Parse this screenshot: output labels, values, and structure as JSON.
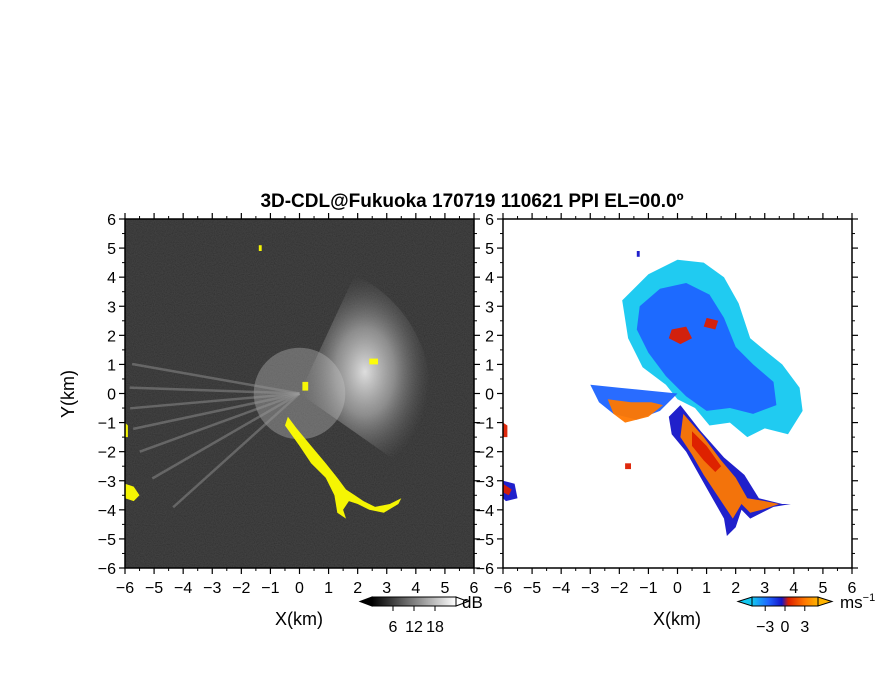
{
  "title": "3D-CDL@Fukuoka 170719 110621 PPI EL=00.0º",
  "colors": {
    "background": "#ffffff",
    "dark_field": "#1e1e1e",
    "yellow": "#ffff00",
    "dark_blue": "#1414c8",
    "blue": "#1e64ff",
    "cyan": "#14c8f0",
    "orange": "#ff7800",
    "red": "#dc1e00"
  },
  "chart_data": [
    {
      "type": "heatmap",
      "panel": "left",
      "title": "",
      "xlabel": "X(km)",
      "ylabel": "Y(km)",
      "xlim": [
        -6,
        6
      ],
      "ylim": [
        -6,
        6
      ],
      "x_ticks": [
        -6,
        -5,
        -4,
        -3,
        -2,
        -1,
        0,
        1,
        2,
        3,
        4,
        5,
        6
      ],
      "y_ticks": [
        -6,
        -5,
        -4,
        -3,
        -2,
        -1,
        0,
        1,
        2,
        3,
        4,
        5,
        6
      ],
      "x_tick_labels": [
        "−6",
        "−5",
        "−4",
        "−3",
        "−2",
        "−1",
        "0",
        "1",
        "2",
        "3",
        "4",
        "5",
        "6"
      ],
      "y_tick_labels": [
        "−6",
        "−5",
        "−4",
        "−3",
        "−2",
        "−1",
        "0",
        "1",
        "2",
        "3",
        "4",
        "5",
        "6"
      ],
      "grid": false,
      "colorbar": {
        "unit": "dB",
        "tick_labels": [
          "6",
          "12",
          "18"
        ],
        "ticks": [
          6,
          12,
          18
        ],
        "range": [
          0,
          24
        ],
        "colormap": "grayscale"
      },
      "features": [
        {
          "name": "bright sector",
          "shape": "wedge",
          "center": [
            0,
            0
          ],
          "radius_km": 4.5,
          "angle_from_deg": -35,
          "angle_to_deg": 65
        },
        {
          "name": "beam streaks",
          "shape": "rays",
          "center": [
            0,
            0
          ],
          "angles_deg": [
            170,
            178,
            185,
            192,
            200,
            210,
            222
          ]
        },
        {
          "name": "yellow band",
          "color": "yellow",
          "points": [
            [
              -0.4,
              -0.8
            ],
            [
              -0.1,
              -1.2
            ],
            [
              0.4,
              -1.8
            ],
            [
              0.9,
              -2.4
            ],
            [
              1.3,
              -2.9
            ],
            [
              1.6,
              -3.3
            ],
            [
              1.9,
              -3.5
            ],
            [
              2.2,
              -3.7
            ],
            [
              2.6,
              -3.9
            ],
            [
              3.1,
              -3.8
            ],
            [
              3.5,
              -3.6
            ],
            [
              3.4,
              -3.8
            ],
            [
              2.9,
              -4.1
            ],
            [
              2.4,
              -4.0
            ],
            [
              2.0,
              -3.8
            ],
            [
              1.7,
              -3.7
            ],
            [
              1.5,
              -4.0
            ],
            [
              1.6,
              -4.3
            ],
            [
              1.3,
              -4.1
            ],
            [
              1.2,
              -3.5
            ],
            [
              0.9,
              -2.9
            ],
            [
              0.4,
              -2.4
            ],
            [
              0.0,
              -1.8
            ],
            [
              -0.5,
              -1.1
            ]
          ]
        },
        {
          "name": "yellow blob west",
          "color": "yellow",
          "points": [
            [
              -6.0,
              -3.1
            ],
            [
              -5.7,
              -3.2
            ],
            [
              -5.5,
              -3.5
            ],
            [
              -5.7,
              -3.7
            ],
            [
              -6.0,
              -3.6
            ]
          ]
        },
        {
          "name": "yellow blob edge",
          "color": "yellow",
          "points": [
            [
              -6.0,
              -1.0
            ],
            [
              -5.9,
              -1.1
            ],
            [
              -5.9,
              -1.5
            ],
            [
              -6.0,
              -1.5
            ]
          ]
        },
        {
          "name": "yellow speck north",
          "color": "yellow",
          "points": [
            [
              -1.4,
              5.1
            ],
            [
              -1.3,
              5.1
            ],
            [
              -1.3,
              4.9
            ],
            [
              -1.4,
              4.9
            ]
          ]
        },
        {
          "name": "yellow speck east",
          "color": "yellow",
          "points": [
            [
              2.4,
              1.2
            ],
            [
              2.7,
              1.2
            ],
            [
              2.7,
              1.0
            ],
            [
              2.4,
              1.0
            ]
          ]
        },
        {
          "name": "yellow speck center",
          "color": "yellow",
          "points": [
            [
              0.1,
              0.4
            ],
            [
              0.3,
              0.4
            ],
            [
              0.3,
              0.1
            ],
            [
              0.1,
              0.1
            ]
          ]
        }
      ]
    },
    {
      "type": "heatmap",
      "panel": "right",
      "title": "",
      "xlabel": "X(km)",
      "ylabel": "",
      "xlim": [
        -6,
        6
      ],
      "ylim": [
        -6,
        6
      ],
      "x_ticks": [
        -6,
        -5,
        -4,
        -3,
        -2,
        -1,
        0,
        1,
        2,
        3,
        4,
        5,
        6
      ],
      "y_ticks": [
        -6,
        -5,
        -4,
        -3,
        -2,
        -1,
        0,
        1,
        2,
        3,
        4,
        5,
        6
      ],
      "x_tick_labels": [
        "−6",
        "−5",
        "−4",
        "−3",
        "−2",
        "−1",
        "0",
        "1",
        "2",
        "3",
        "4",
        "5",
        "6"
      ],
      "y_tick_labels": [
        "−6",
        "−5",
        "−4",
        "−3",
        "−2",
        "−1",
        "0",
        "1",
        "2",
        "3",
        "4",
        "5",
        "6"
      ],
      "grid": false,
      "colorbar": {
        "unit": "ms",
        "unit_superscript": "−1",
        "tick_labels": [
          "−3",
          "0",
          "3"
        ],
        "ticks": [
          -3,
          0,
          3
        ],
        "range": [
          -5,
          5
        ],
        "colormap": "cyan-blue-red-orange"
      },
      "features": [
        {
          "name": "cyan echo",
          "color": "cyan",
          "points": [
            [
              -1.9,
              3.2
            ],
            [
              -1.0,
              4.1
            ],
            [
              0.0,
              4.6
            ],
            [
              0.9,
              4.5
            ],
            [
              1.6,
              4.0
            ],
            [
              2.1,
              3.1
            ],
            [
              2.5,
              1.9
            ],
            [
              3.1,
              1.4
            ],
            [
              3.6,
              1.0
            ],
            [
              4.2,
              0.2
            ],
            [
              4.3,
              -0.6
            ],
            [
              3.8,
              -1.4
            ],
            [
              3.0,
              -1.2
            ],
            [
              2.4,
              -1.5
            ],
            [
              1.8,
              -1.0
            ],
            [
              1.1,
              -1.1
            ],
            [
              0.6,
              -0.5
            ],
            [
              0.0,
              -0.2
            ],
            [
              -0.4,
              0.3
            ],
            [
              -1.2,
              0.9
            ],
            [
              -1.7,
              1.9
            ]
          ]
        },
        {
          "name": "blue core",
          "color": "blue",
          "points": [
            [
              -1.3,
              3.0
            ],
            [
              -0.6,
              3.6
            ],
            [
              0.3,
              3.8
            ],
            [
              1.1,
              3.4
            ],
            [
              1.6,
              2.6
            ],
            [
              2.0,
              1.6
            ],
            [
              2.6,
              1.0
            ],
            [
              3.3,
              0.4
            ],
            [
              3.4,
              -0.4
            ],
            [
              2.6,
              -0.7
            ],
            [
              1.8,
              -0.5
            ],
            [
              1.0,
              -0.6
            ],
            [
              0.3,
              -0.1
            ],
            [
              -0.4,
              0.6
            ],
            [
              -1.0,
              1.4
            ],
            [
              -1.4,
              2.2
            ]
          ]
        },
        {
          "name": "west band",
          "color": "blue",
          "points": [
            [
              -3.0,
              0.3
            ],
            [
              -2.0,
              0.2
            ],
            [
              -1.0,
              0.1
            ],
            [
              0.0,
              0.0
            ],
            [
              -0.6,
              -0.6
            ],
            [
              -1.4,
              -0.9
            ],
            [
              -2.2,
              -0.7
            ],
            [
              -2.7,
              -0.3
            ]
          ]
        },
        {
          "name": "orange west",
          "color": "orange",
          "points": [
            [
              -2.4,
              -0.2
            ],
            [
              -1.6,
              -0.3
            ],
            [
              -0.9,
              -0.3
            ],
            [
              -0.5,
              -0.4
            ],
            [
              -1.0,
              -0.8
            ],
            [
              -1.8,
              -1.0
            ],
            [
              -2.2,
              -0.7
            ]
          ]
        },
        {
          "name": "red spot north",
          "color": "red",
          "points": [
            [
              -0.2,
              2.2
            ],
            [
              0.3,
              2.3
            ],
            [
              0.5,
              1.9
            ],
            [
              0.1,
              1.7
            ],
            [
              -0.3,
              1.9
            ]
          ]
        },
        {
          "name": "red edge",
          "color": "red",
          "points": [
            [
              1.0,
              2.6
            ],
            [
              1.4,
              2.5
            ],
            [
              1.3,
              2.2
            ],
            [
              0.9,
              2.3
            ]
          ]
        },
        {
          "name": "dark blue band",
          "color": "dark_blue",
          "points": [
            [
              0.1,
              -0.4
            ],
            [
              0.8,
              -1.3
            ],
            [
              1.6,
              -2.2
            ],
            [
              2.3,
              -2.8
            ],
            [
              2.8,
              -3.6
            ],
            [
              3.6,
              -3.8
            ],
            [
              3.9,
              -3.8
            ],
            [
              3.3,
              -3.9
            ],
            [
              2.9,
              -4.1
            ],
            [
              2.5,
              -4.3
            ],
            [
              2.2,
              -4.0
            ],
            [
              2.0,
              -4.6
            ],
            [
              1.7,
              -4.9
            ],
            [
              1.6,
              -4.3
            ],
            [
              1.2,
              -3.6
            ],
            [
              0.8,
              -2.9
            ],
            [
              0.3,
              -2.0
            ],
            [
              -0.2,
              -1.4
            ],
            [
              -0.3,
              -0.8
            ]
          ]
        },
        {
          "name": "orange band",
          "color": "orange",
          "points": [
            [
              0.2,
              -0.7
            ],
            [
              0.9,
              -1.5
            ],
            [
              1.5,
              -2.3
            ],
            [
              2.0,
              -2.9
            ],
            [
              2.4,
              -3.6
            ],
            [
              3.0,
              -3.7
            ],
            [
              3.5,
              -3.8
            ],
            [
              2.9,
              -4.0
            ],
            [
              2.5,
              -4.1
            ],
            [
              2.2,
              -3.8
            ],
            [
              1.9,
              -4.3
            ],
            [
              1.7,
              -4.0
            ],
            [
              1.3,
              -3.4
            ],
            [
              0.9,
              -2.8
            ],
            [
              0.5,
              -2.1
            ],
            [
              0.1,
              -1.5
            ]
          ]
        },
        {
          "name": "red band",
          "color": "red",
          "points": [
            [
              0.5,
              -1.3
            ],
            [
              1.0,
              -1.8
            ],
            [
              1.5,
              -2.5
            ],
            [
              1.3,
              -2.7
            ],
            [
              0.9,
              -2.3
            ],
            [
              0.5,
              -1.8
            ]
          ]
        },
        {
          "name": "west edge blob",
          "color": "dark_blue",
          "points": [
            [
              -6.0,
              -3.0
            ],
            [
              -5.6,
              -3.1
            ],
            [
              -5.5,
              -3.6
            ],
            [
              -5.9,
              -3.7
            ],
            [
              -6.0,
              -3.6
            ]
          ]
        },
        {
          "name": "west edge red",
          "color": "red",
          "points": [
            [
              -6.0,
              -3.1
            ],
            [
              -5.7,
              -3.3
            ],
            [
              -5.8,
              -3.5
            ],
            [
              -6.0,
              -3.4
            ]
          ]
        },
        {
          "name": "edge speck",
          "color": "red",
          "points": [
            [
              -6.0,
              -1.0
            ],
            [
              -5.85,
              -1.1
            ],
            [
              -5.85,
              -1.5
            ],
            [
              -6.0,
              -1.5
            ]
          ]
        },
        {
          "name": "speck north",
          "color": "dark_blue",
          "points": [
            [
              -1.4,
              4.9
            ],
            [
              -1.3,
              4.9
            ],
            [
              -1.3,
              4.7
            ],
            [
              -1.4,
              4.7
            ]
          ]
        },
        {
          "name": "speck south",
          "color": "red",
          "points": [
            [
              -1.8,
              -2.4
            ],
            [
              -1.6,
              -2.4
            ],
            [
              -1.6,
              -2.6
            ],
            [
              -1.8,
              -2.6
            ]
          ]
        }
      ]
    }
  ]
}
